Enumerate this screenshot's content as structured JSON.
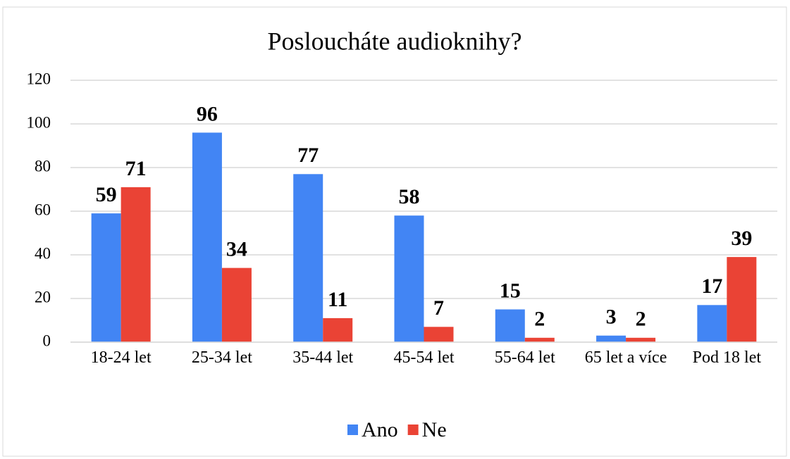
{
  "chart_data": {
    "type": "bar",
    "title": "Posloucháte audioknihy?",
    "categories": [
      "18-24 let",
      "25-34 let",
      "35-44 let",
      "45-54 let",
      "55-64 let",
      "65 let a více",
      "Pod 18 let"
    ],
    "series": [
      {
        "name": "Ano",
        "color": "#4285f4",
        "values": [
          59,
          96,
          77,
          58,
          15,
          3,
          17
        ]
      },
      {
        "name": "Ne",
        "color": "#ea4335",
        "values": [
          71,
          34,
          11,
          7,
          2,
          2,
          39
        ]
      }
    ],
    "ylim": [
      0,
      120
    ],
    "yticks": [
      0,
      20,
      40,
      60,
      80,
      100,
      120
    ],
    "grid": true,
    "legend": "bottom"
  }
}
